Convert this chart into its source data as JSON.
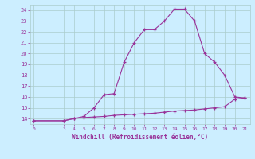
{
  "xlabel": "Windchill (Refroidissement éolien,°C)",
  "x_ticks": [
    0,
    3,
    4,
    5,
    6,
    7,
    8,
    9,
    10,
    11,
    12,
    13,
    14,
    15,
    16,
    17,
    18,
    19,
    20,
    21
  ],
  "ylim": [
    13.5,
    24.5
  ],
  "xlim": [
    -0.3,
    21.5
  ],
  "yticks": [
    14,
    15,
    16,
    17,
    18,
    19,
    20,
    21,
    22,
    23,
    24
  ],
  "line1_x": [
    0,
    3,
    4,
    5,
    6,
    7,
    8,
    9,
    10,
    11,
    12,
    13,
    14,
    15,
    16,
    17,
    18,
    19,
    20,
    21
  ],
  "line1_y": [
    13.8,
    13.8,
    14.0,
    14.2,
    15.0,
    16.2,
    16.3,
    19.2,
    21.0,
    22.2,
    22.2,
    23.0,
    24.1,
    24.1,
    23.0,
    20.0,
    19.2,
    18.0,
    16.0,
    15.9
  ],
  "line2_x": [
    0,
    3,
    4,
    5,
    6,
    7,
    8,
    9,
    10,
    11,
    12,
    13,
    14,
    15,
    16,
    17,
    18,
    19,
    20,
    21
  ],
  "line2_y": [
    13.8,
    13.8,
    14.0,
    14.1,
    14.15,
    14.2,
    14.3,
    14.35,
    14.4,
    14.45,
    14.5,
    14.6,
    14.7,
    14.75,
    14.8,
    14.9,
    15.0,
    15.1,
    15.8,
    15.9
  ],
  "line_color": "#993399",
  "bg_color": "#cceeff",
  "grid_color": "#aacccc",
  "text_color": "#993399",
  "marker": "+"
}
